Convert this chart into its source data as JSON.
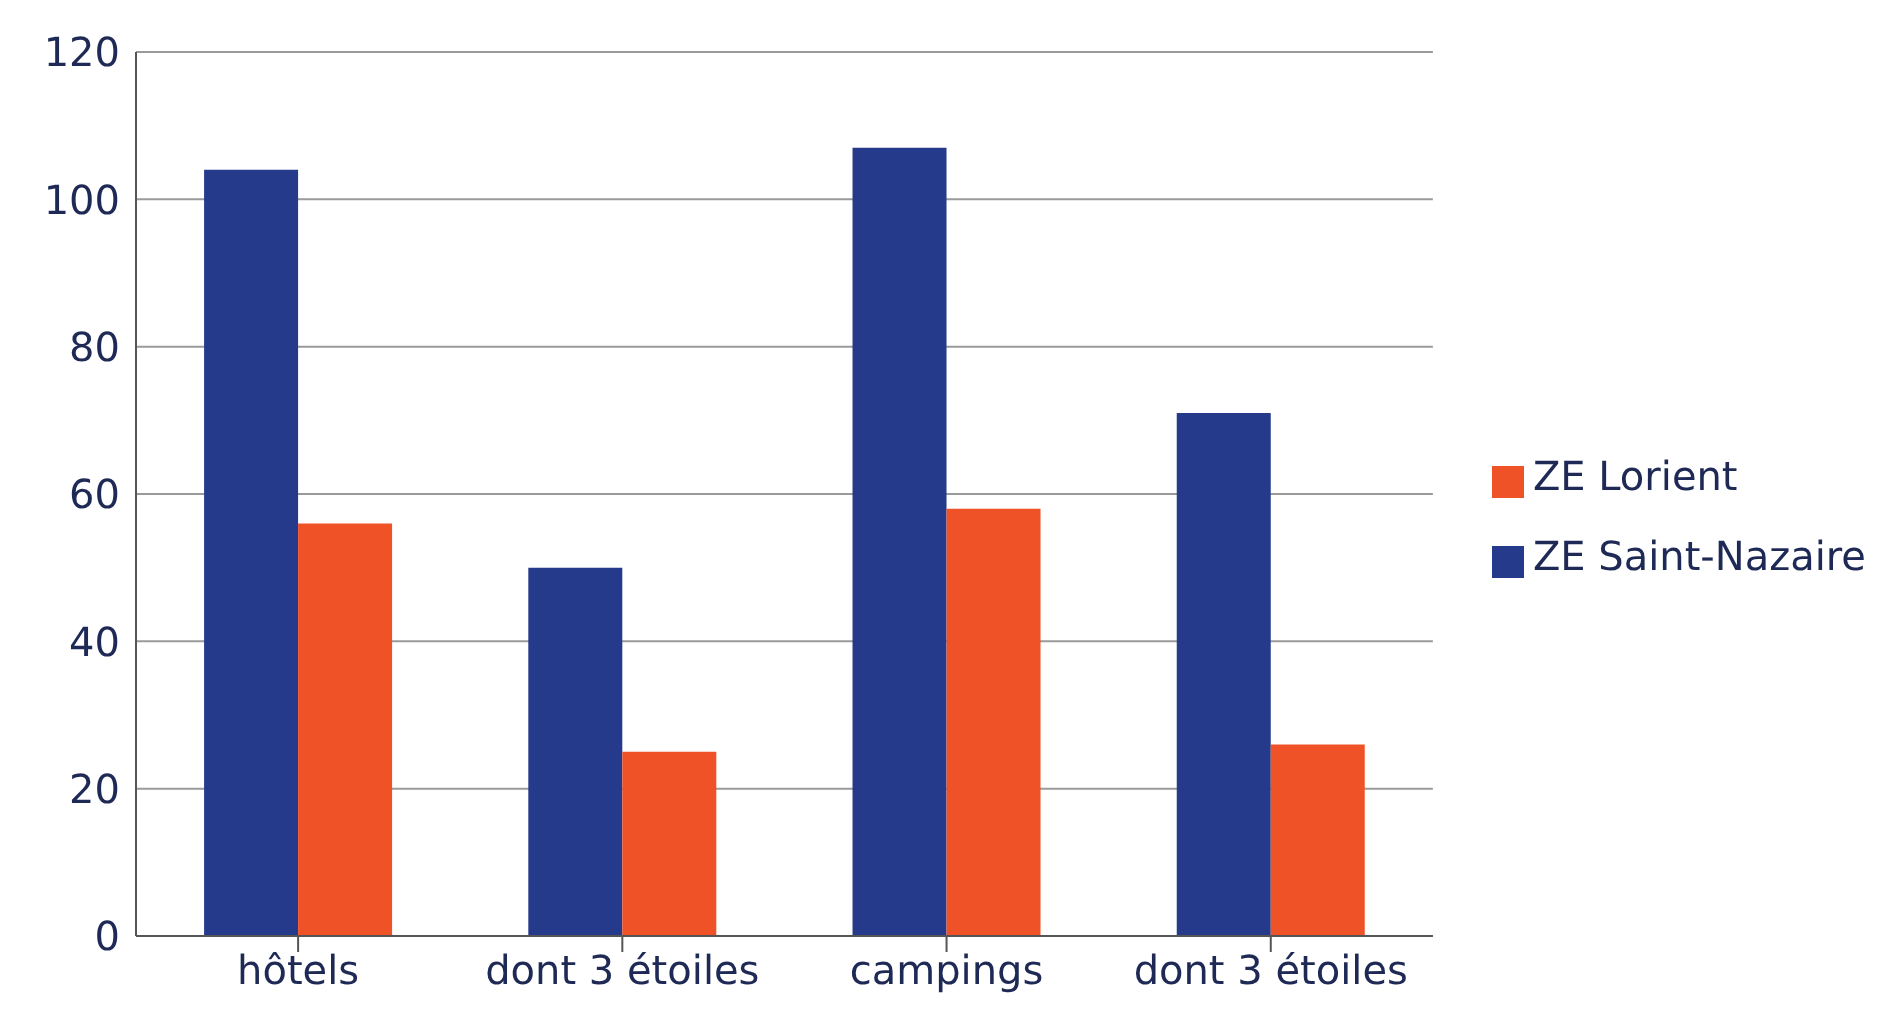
{
  "chart_data": {
    "type": "bar",
    "categories": [
      "hôtels",
      "dont 3 étoiles",
      "campings",
      "dont 3 étoiles"
    ],
    "series": [
      {
        "name": "ZE Saint-Nazaire",
        "color": "#253a8a",
        "values": [
          104,
          50,
          107,
          71
        ]
      },
      {
        "name": "ZE Lorient",
        "color": "#f05228",
        "values": [
          56,
          25,
          58,
          26
        ]
      }
    ],
    "ylim": [
      0,
      120
    ],
    "yticks": [
      0,
      20,
      40,
      60,
      80,
      100,
      120
    ],
    "grid": "y",
    "legend": "right"
  }
}
